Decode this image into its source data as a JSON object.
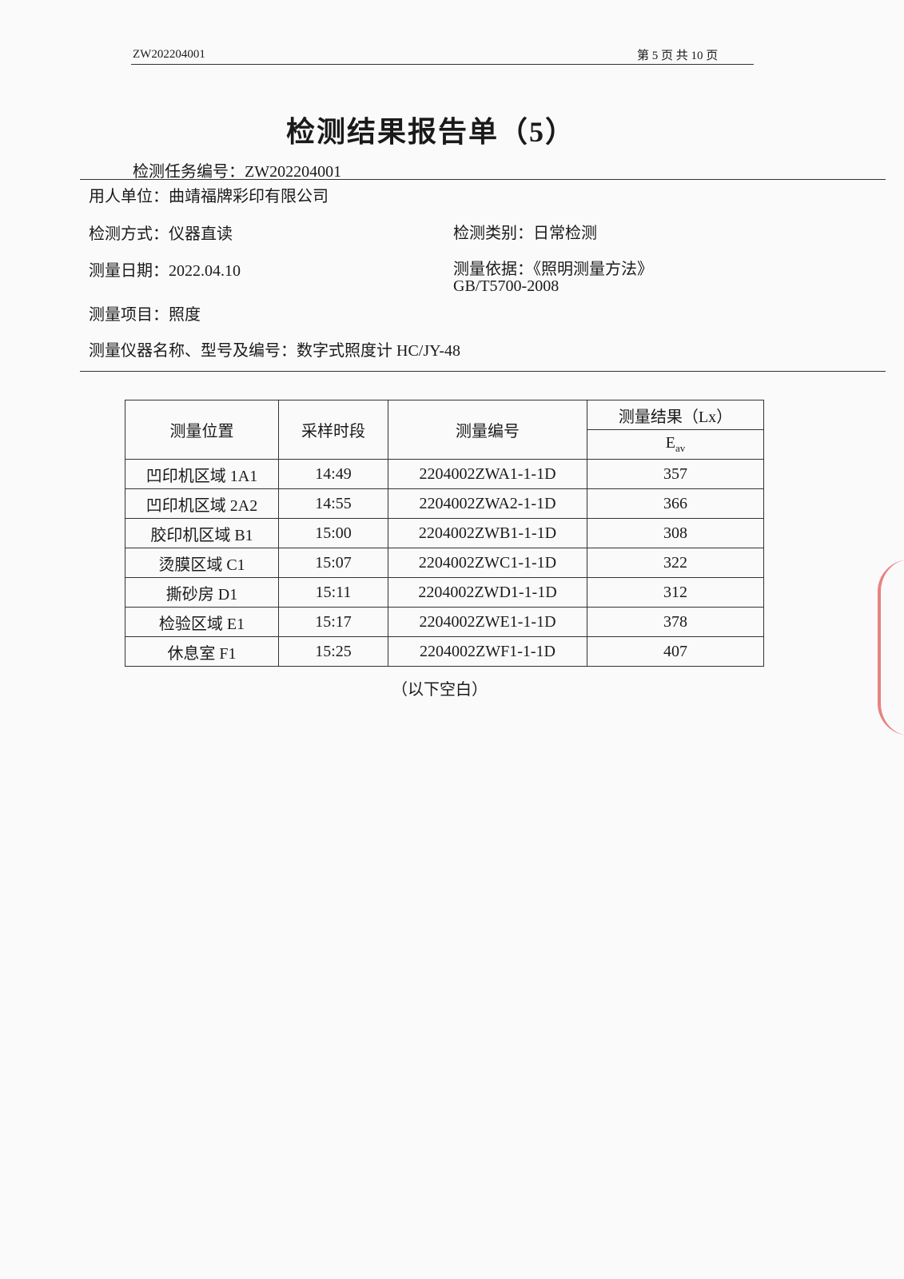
{
  "header": {
    "doc_no": "ZW202204001",
    "page_info": "第 5 页 共 10 页"
  },
  "title": "检测结果报告单（5）",
  "fields": {
    "task_no": "检测任务编号：ZW202204001",
    "employer": "用人单位：曲靖福牌彩印有限公司",
    "method": "检测方式：仪器直读",
    "category": "检测类别：日常检测",
    "date": "测量日期：2022.04.10",
    "basis": "测量依据：《照明测量方法》",
    "basis_std": "GB/T5700-2008",
    "item": "测量项目：照度",
    "instrument": "测量仪器名称、型号及编号：数字式照度计 HC/JY-48"
  },
  "table": {
    "headers": {
      "location": "测量位置",
      "period": "采样时段",
      "code": "测量编号",
      "result": "测量结果（Lx）",
      "eav_main": "E",
      "eav_sub": "av"
    },
    "rows": [
      {
        "location": "凹印机区域 1A1",
        "period": "14:49",
        "code": "2204002ZWA1-1-1D",
        "eav": "357"
      },
      {
        "location": "凹印机区域 2A2",
        "period": "14:55",
        "code": "2204002ZWA2-1-1D",
        "eav": "366"
      },
      {
        "location": "胶印机区域 B1",
        "period": "15:00",
        "code": "2204002ZWB1-1-1D",
        "eav": "308"
      },
      {
        "location": "烫膜区域 C1",
        "period": "15:07",
        "code": "2204002ZWC1-1-1D",
        "eav": "322"
      },
      {
        "location": "撕砂房 D1",
        "period": "15:11",
        "code": "2204002ZWD1-1-1D",
        "eav": "312"
      },
      {
        "location": "检验区域 E1",
        "period": "15:17",
        "code": "2204002ZWE1-1-1D",
        "eav": "378"
      },
      {
        "location": "休息室 F1",
        "period": "15:25",
        "code": "2204002ZWF1-1-1D",
        "eav": "407"
      }
    ],
    "footer": "（以下空白）"
  },
  "colors": {
    "stamp": "#e0504f"
  }
}
